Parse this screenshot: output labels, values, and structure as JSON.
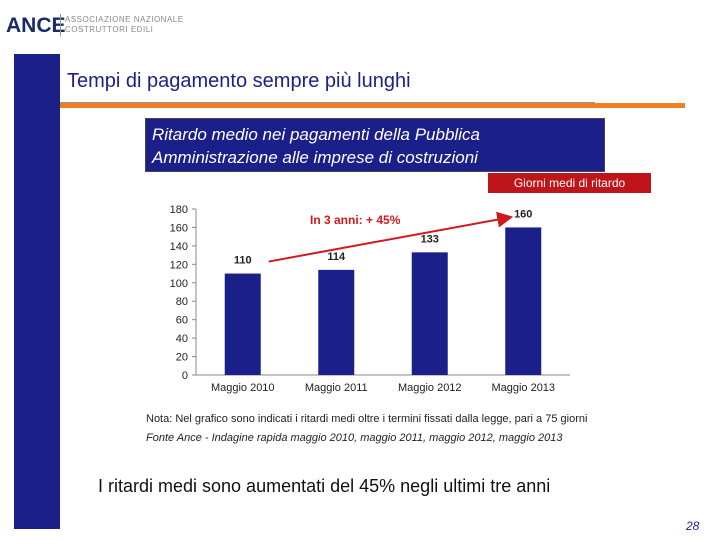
{
  "header": {
    "logo": "ANCE",
    "org_line1": "ASSOCIAZIONE NAZIONALE",
    "org_line2": "COSTRUTTORI EDILI"
  },
  "slide": {
    "title": "Tempi di pagamento sempre più lunghi",
    "subtitle_line1": "Ritardo medio nei pagamenti della Pubblica",
    "subtitle_line2": "Amministrazione alle imprese di costruzioni",
    "note": "Nota: Nel grafico sono indicati i ritardi medi oltre i termini fissati dalla legge, pari a 75 giorni",
    "source": "Fonte Ance - Indagine rapida maggio 2010, maggio 2011, maggio 2012, maggio 2013",
    "conclusion": "I ritardi medi sono aumentati del 45% negli ultimi tre anni",
    "page_number": "28"
  },
  "colors": {
    "bar": "#1b1f8a",
    "arrow": "#d0181e",
    "accent": "#f07f1e"
  },
  "chart_data": {
    "type": "bar",
    "legend": "Giorni medi di ritardo",
    "categories": [
      "Maggio 2010",
      "Maggio 2011",
      "Maggio 2012",
      "Maggio 2013"
    ],
    "values": [
      110,
      114,
      133,
      160
    ],
    "ylim": [
      0,
      180
    ],
    "yticks": [
      0,
      20,
      40,
      60,
      80,
      100,
      120,
      140,
      160,
      180
    ],
    "annotation": "In 3 anni: + 45%",
    "title": "",
    "xlabel": "",
    "ylabel": ""
  }
}
